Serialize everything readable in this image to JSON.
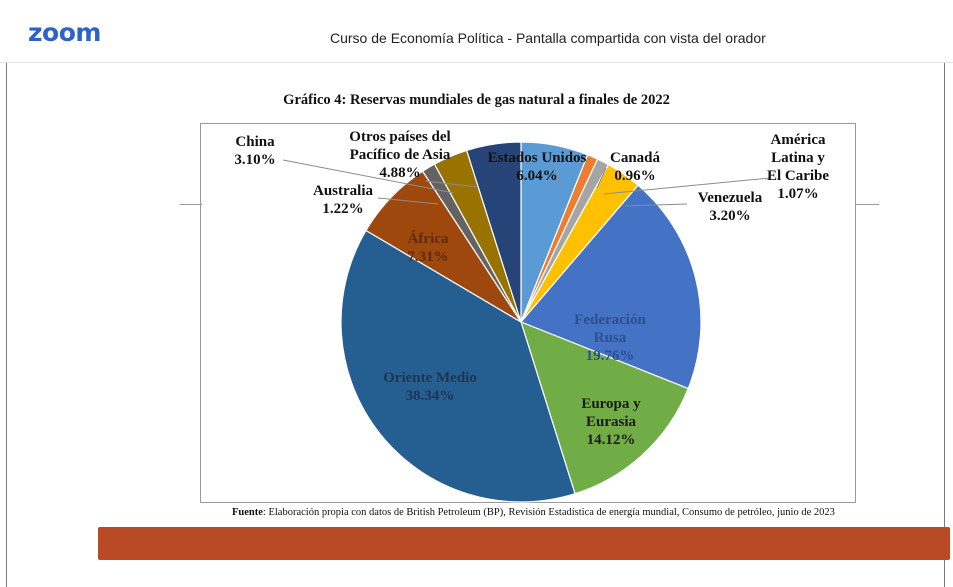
{
  "app": {
    "logo": "zoom",
    "window_title": "Curso de Economía Política  - Pantalla compartida con vista del orador"
  },
  "source": {
    "prefix": "Fuente",
    "text": ": Elaboración propia con datos de British Petroleum (BP), Revisión Estadística de energía mundial, Consumo de petróleo, junio de 2023"
  },
  "colors": {
    "accent": "#2d63c8",
    "banner": "#b84a25"
  },
  "chart_data": {
    "type": "pie",
    "title": "Gráfico 4: Reservas mundiales de gas natural a finales de 2022",
    "slices": [
      {
        "label_lines": [
          "Estados Unidos",
          "6.04%"
        ],
        "value": 6.04,
        "color": "#5b9bd5"
      },
      {
        "label_lines": [
          "Canadá",
          "0.96%"
        ],
        "value": 0.96,
        "color": "#ed7d31"
      },
      {
        "label_lines": [
          "América",
          "Latina y",
          "El Caribe",
          "1.07%"
        ],
        "value": 1.07,
        "color": "#a5a5a5"
      },
      {
        "label_lines": [
          "Venezuela",
          "3.20%"
        ],
        "value": 3.2,
        "color": "#ffc000"
      },
      {
        "label_lines": [
          "Federación",
          "Rusa",
          "19.76%"
        ],
        "value": 19.76,
        "color": "#4472c4"
      },
      {
        "label_lines": [
          "Europa y",
          "Eurasia",
          "14.12%"
        ],
        "value": 14.12,
        "color": "#70ad47"
      },
      {
        "label_lines": [
          "Oriente Medio",
          "38.34%"
        ],
        "value": 38.34,
        "color": "#255e91"
      },
      {
        "label_lines": [
          "África",
          "7.31%"
        ],
        "value": 7.31,
        "color": "#9e480e"
      },
      {
        "label_lines": [
          "Australia",
          "1.22%"
        ],
        "value": 1.22,
        "color": "#636363"
      },
      {
        "label_lines": [
          "China",
          "3.10%"
        ],
        "value": 3.1,
        "color": "#997300"
      },
      {
        "label_lines": [
          "Otros países del",
          "Pacífico de Asia",
          "4.88%"
        ],
        "value": 4.88,
        "color": "#264478"
      }
    ]
  }
}
